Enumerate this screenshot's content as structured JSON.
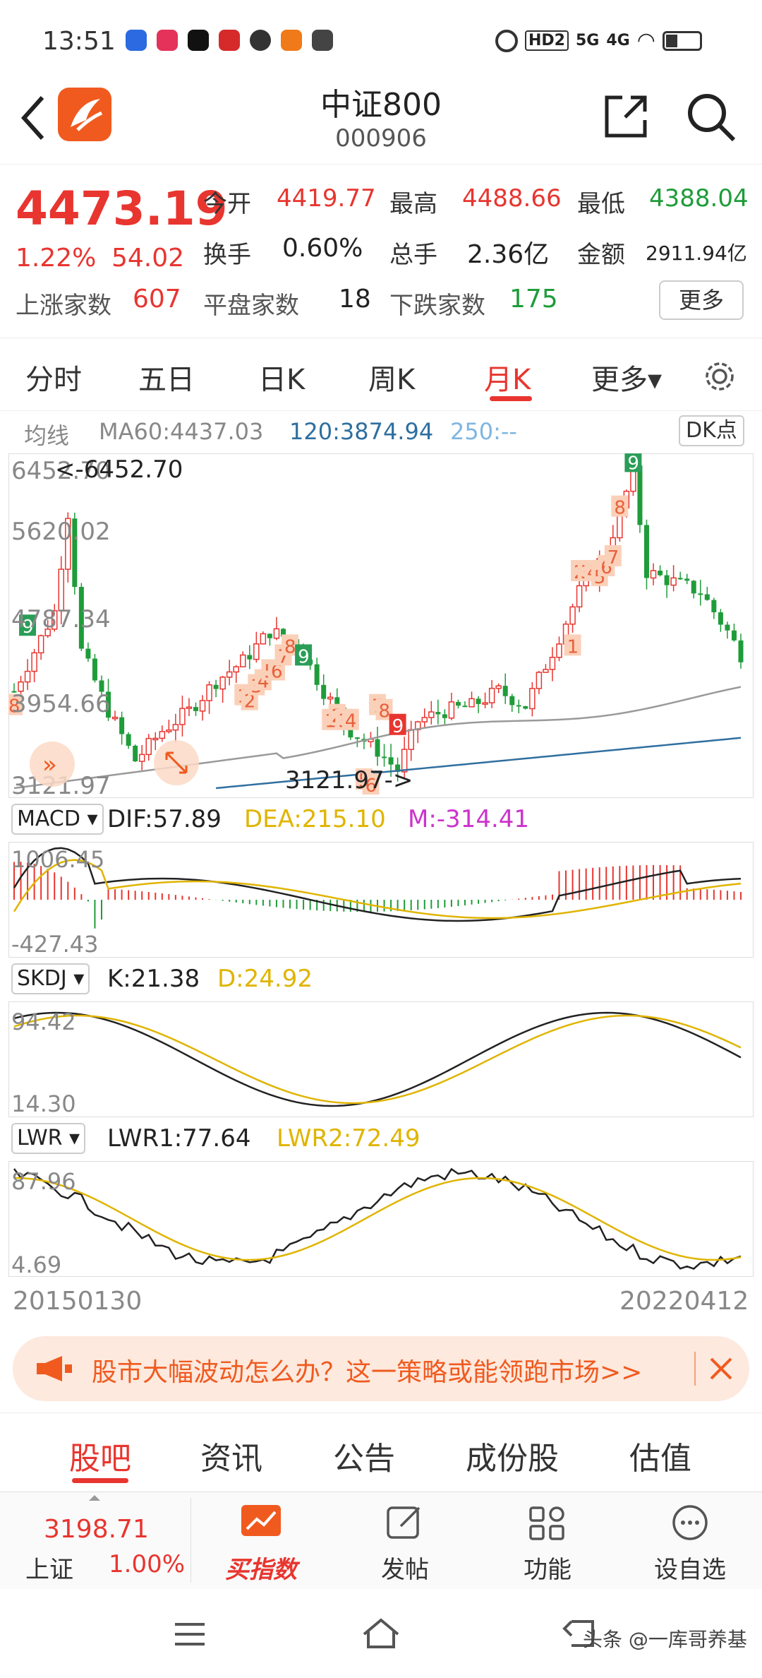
{
  "status_bar": {
    "time": "13:51",
    "battery": "",
    "hd": "HD2",
    "net1": "5G",
    "net2": "4G"
  },
  "header": {
    "title": "中证800",
    "code": "000906"
  },
  "quote": {
    "price": "4473.19",
    "change_pct": "1.22%",
    "change": "54.02",
    "open_label": "今开",
    "open": "4419.77",
    "high_label": "最高",
    "high": "4488.66",
    "low_label": "最低",
    "low": "4388.04",
    "turnover_label": "换手",
    "turnover": "0.60%",
    "volume_label": "总手",
    "volume": "2.36亿",
    "amount_label": "金额",
    "amount": "2911.94亿",
    "up_label": "上涨家数",
    "up": "607",
    "flat_label": "平盘家数",
    "flat": "18",
    "down_label": "下跌家数",
    "down": "175",
    "more": "更多"
  },
  "tabs": [
    "分时",
    "五日",
    "日K",
    "周K",
    "月K",
    "更多▾"
  ],
  "active_tab": "月K",
  "ma_bar": {
    "label": "均线",
    "ma60": "MA60:4437.03",
    "ma120": "120:3874.94",
    "ma250": "250:--",
    "dk": "DK点"
  },
  "main_chart": {
    "y_ticks": [
      "6452.70",
      "5620.02",
      "4787.34",
      "3954.66",
      "3121.97"
    ],
    "high_marker": "<-6452.70",
    "low_marker": "3121.97->",
    "colors": {
      "up": "#e8352f",
      "down": "#1f9c3a",
      "ma120": "#9a9a9a",
      "ma250": "#2f6f9f"
    }
  },
  "macd": {
    "name": "MACD",
    "dif": "DIF:57.89",
    "dea": "DEA:215.10",
    "m": "M:-314.41",
    "y_top": "1006.45",
    "y_bot": "-427.43"
  },
  "skdj": {
    "name": "SKDJ",
    "k": "K:21.38",
    "d": "D:24.92",
    "y_top": "94.42",
    "y_bot": "14.30"
  },
  "lwr": {
    "name": "LWR",
    "lwr1": "LWR1:77.64",
    "lwr2": "LWR2:72.49",
    "y_top": "87.96",
    "y_bot": "4.69"
  },
  "x_axis": {
    "start": "20150130",
    "end": "20220412"
  },
  "banner": {
    "text": "股市大幅波动怎么办？这一策略或能领跑市场>>"
  },
  "bottom_tabs": [
    "股吧",
    "资讯",
    "公告",
    "成份股",
    "估值"
  ],
  "active_bottom_tab": "股吧",
  "toolbar": {
    "index_value": "3198.71",
    "index_name": "上证",
    "index_change": "1.00%",
    "buy_label": "买指数",
    "post_label": "发帖",
    "func_label": "功能",
    "watch_label": "设自选"
  },
  "watermark": "头条 @一库哥养基"
}
